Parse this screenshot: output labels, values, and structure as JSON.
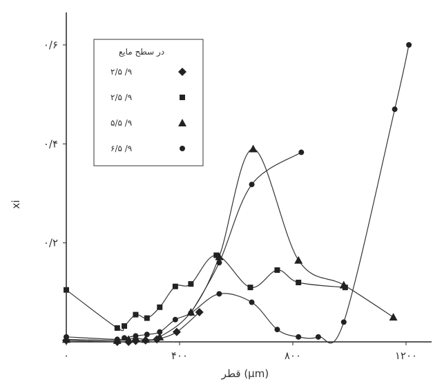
{
  "chart_data": {
    "type": "line",
    "title": "",
    "xlabel": "قطر (μm)",
    "ylabel": "xi",
    "xlim": [
      0,
      1250
    ],
    "ylim": [
      0,
      0.7
    ],
    "x_ticks": [
      {
        "value": 0,
        "label": "۰"
      },
      {
        "value": 400,
        "label": "۴۰۰"
      },
      {
        "value": 800,
        "label": "۸۰۰"
      },
      {
        "value": 1200,
        "label": "۱۲۰۰"
      }
    ],
    "y_ticks": [
      {
        "value": 0.2,
        "label": "۰/۲"
      },
      {
        "value": 0.4,
        "label": "۰/۴"
      },
      {
        "value": 0.6,
        "label": "۰/۶"
      }
    ],
    "grid": false,
    "legend": {
      "title": "در سطح مایع",
      "placement": "top-left"
    },
    "series": [
      {
        "name": "۲/۵ /۹",
        "marker": "diamond",
        "x": [
          0,
          180,
          220,
          245,
          280,
          320,
          390,
          470
        ],
        "y": [
          0.003,
          0.0,
          0.0,
          0.002,
          0.003,
          0.005,
          0.02,
          0.06
        ]
      },
      {
        "name": "۲/۵ /۹",
        "marker": "square",
        "x": [
          0,
          180,
          205,
          245,
          285,
          330,
          385,
          440,
          530,
          650,
          745,
          820,
          985
        ],
        "y": [
          0.105,
          0.028,
          0.032,
          0.055,
          0.048,
          0.07,
          0.112,
          0.117,
          0.175,
          0.11,
          0.145,
          0.12,
          0.11
        ]
      },
      {
        "name": "۵/۵ /۹",
        "marker": "triangle",
        "x": [
          0,
          180,
          220,
          245,
          280,
          330,
          440,
          540,
          660,
          820,
          980,
          1155
        ],
        "y": [
          0.005,
          0.003,
          0.005,
          0.008,
          0.005,
          0.01,
          0.06,
          0.172,
          0.39,
          0.165,
          0.115,
          0.05
        ]
      },
      {
        "name": "۶/۵ /۹",
        "marker": "circle",
        "x": [
          0,
          180,
          205,
          245,
          285,
          330,
          385,
          440,
          540,
          655,
          745,
          820,
          890,
          980,
          1160,
          1210
        ],
        "y": [
          0.01,
          0.005,
          0.008,
          0.012,
          0.015,
          0.02,
          0.045,
          0.058,
          0.097,
          0.08,
          0.025,
          0.01,
          0.01,
          0.04,
          0.47,
          0.6
        ]
      }
    ],
    "extra_series": [
      {
        "marker": "circle",
        "x": [
          440,
          540,
          655,
          830
        ],
        "y": [
          0.058,
          0.16,
          0.318,
          0.383
        ]
      }
    ]
  }
}
